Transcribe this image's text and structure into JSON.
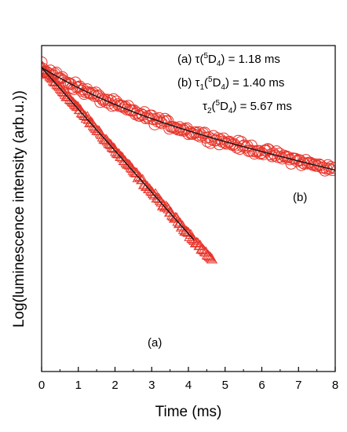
{
  "chart_data": {
    "type": "scatter",
    "title": "",
    "xlabel": "Time (ms)",
    "ylabel": "Log(luminescence intensity (arb.u.))",
    "xlim": [
      0,
      8
    ],
    "ylim": [
      -6.2,
      0.45
    ],
    "x_ticks": [
      "0",
      "1",
      "2",
      "3",
      "4",
      "5",
      "6",
      "7",
      "8"
    ],
    "y_ticks_labeled": false,
    "grid": false,
    "colors": {
      "data": "#e8342a",
      "fit": "#1a1a1a"
    },
    "series": [
      {
        "label": "(a)",
        "marker": "triangle",
        "fit": {
          "model": "single-exp",
          "tau_ms": 1.18,
          "t_end": 4.15
        },
        "x_end": 4.65
      },
      {
        "label": "(b)",
        "marker": "circle",
        "fit": {
          "model": "bi-exp",
          "tau1_ms": 1.4,
          "tau2_ms": 5.67,
          "a1": 0.5,
          "a2": 0.5
        },
        "x_end": 8.0
      }
    ],
    "annotations": {
      "line1": {
        "prefix": "(a) ",
        "tau": "τ",
        "paren_open": "(",
        "sup": "5",
        "D": "D",
        "sub": "4",
        "paren_close": ")",
        "value": " = 1.18 ms"
      },
      "line2": {
        "prefix": "(b) ",
        "tau": "τ",
        "tau_sub": "1",
        "paren_open": "(",
        "sup": "5",
        "D": "D",
        "sub": "4",
        "paren_close": ")",
        "value": " = 1.40 ms"
      },
      "line3": {
        "prefix": "",
        "tau": "τ",
        "tau_sub": "2",
        "paren_open": "(",
        "sup": "5",
        "D": "D",
        "sub": "4",
        "paren_close": ")",
        "value": " = 5.67 ms"
      }
    }
  }
}
